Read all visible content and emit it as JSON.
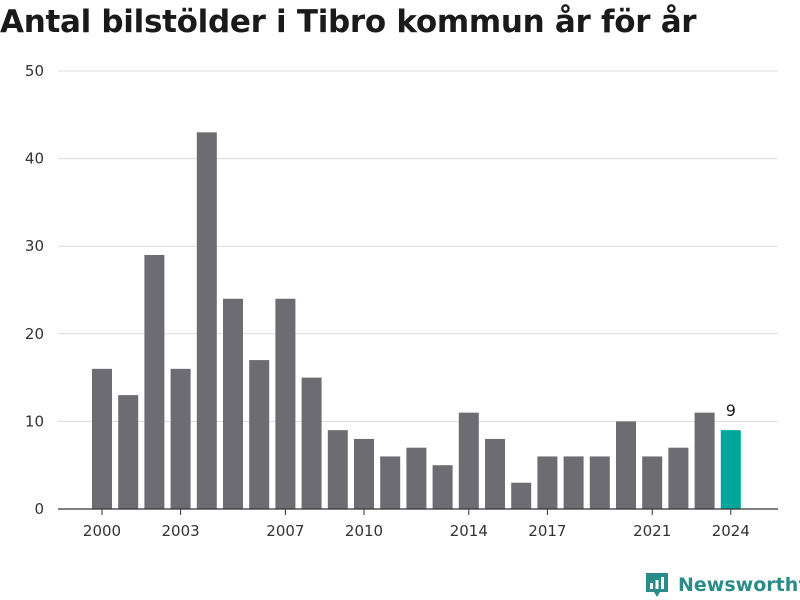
{
  "colors": {
    "bar": "#6d6c72",
    "highlight": "#00a69a",
    "grid": "#dcdcdc",
    "brand": "#2a8c88"
  },
  "brand": {
    "name": "Newsworthy",
    "icon": "newsworthy-chart-icon"
  },
  "chart_data": {
    "type": "bar",
    "title": "Antal bilstölder i Tibro kommun år för år",
    "xlabel": "",
    "ylabel": "",
    "categories": [
      "2000",
      "2001",
      "2002",
      "2003",
      "2004",
      "2005",
      "2006",
      "2007",
      "2008",
      "2009",
      "2010",
      "2011",
      "2012",
      "2013",
      "2014",
      "2015",
      "2016",
      "2017",
      "2018",
      "2019",
      "2020",
      "2021",
      "2022",
      "2023",
      "2024"
    ],
    "values": [
      16,
      13,
      29,
      16,
      43,
      24,
      17,
      24,
      15,
      9,
      8,
      6,
      7,
      5,
      11,
      8,
      3,
      6,
      6,
      6,
      10,
      6,
      7,
      11,
      9
    ],
    "ylim": [
      0,
      50
    ],
    "yticks": [
      0,
      10,
      20,
      30,
      40,
      50
    ],
    "xtick_labels": [
      "2000",
      "2003",
      "2007",
      "2010",
      "2014",
      "2017",
      "2021",
      "2024"
    ],
    "highlight_category": "2024",
    "data_labels": [
      {
        "category": "2024",
        "text": "9"
      }
    ],
    "grid": true,
    "legend": "none"
  }
}
